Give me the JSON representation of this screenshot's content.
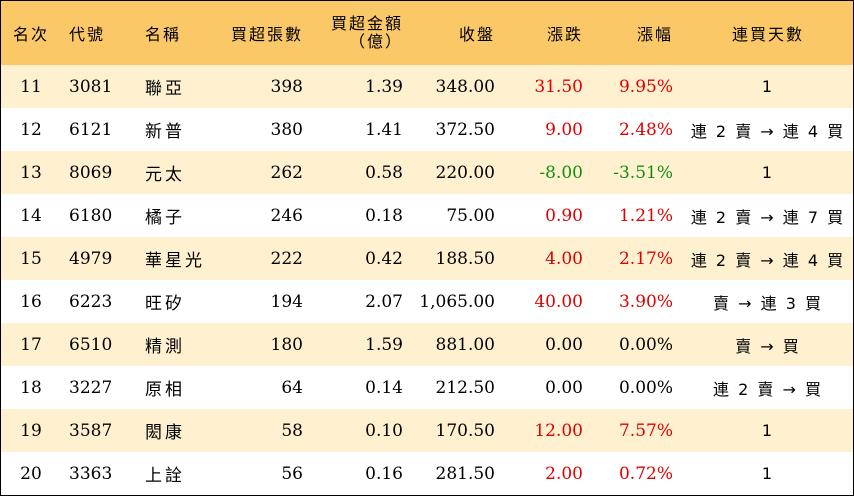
{
  "header": {
    "rank": "名次",
    "code": "代號",
    "name": "名稱",
    "net_buy_lots": "買超張數",
    "net_buy_amount_line1": "買超金額",
    "net_buy_amount_line2": "（億）",
    "close": "收盤",
    "change": "漲跌",
    "change_pct": "漲幅",
    "streak": "連買天數"
  },
  "colors": {
    "header_bg": "#fbc867",
    "stripe_bg": "#fff1d0",
    "up": "#e00000",
    "down": "#109010"
  },
  "rows": [
    {
      "rank": "11",
      "code": "3081",
      "name": "聯亞",
      "lots": "398",
      "amount": "1.39",
      "close": "348.00",
      "change": "31.50",
      "pct": "9.95%",
      "trend": "up",
      "streak": "1"
    },
    {
      "rank": "12",
      "code": "6121",
      "name": "新普",
      "lots": "380",
      "amount": "1.41",
      "close": "372.50",
      "change": "9.00",
      "pct": "2.48%",
      "trend": "up",
      "streak": "連 2 賣 → 連 4 買"
    },
    {
      "rank": "13",
      "code": "8069",
      "name": "元太",
      "lots": "262",
      "amount": "0.58",
      "close": "220.00",
      "change": "-8.00",
      "pct": "-3.51%",
      "trend": "down",
      "streak": "1"
    },
    {
      "rank": "14",
      "code": "6180",
      "name": "橘子",
      "lots": "246",
      "amount": "0.18",
      "close": "75.00",
      "change": "0.90",
      "pct": "1.21%",
      "trend": "up",
      "streak": "連 2 賣 → 連 7 買"
    },
    {
      "rank": "15",
      "code": "4979",
      "name": "華星光",
      "lots": "222",
      "amount": "0.42",
      "close": "188.50",
      "change": "4.00",
      "pct": "2.17%",
      "trend": "up",
      "streak": "連 2 賣 → 連 4 買"
    },
    {
      "rank": "16",
      "code": "6223",
      "name": "旺矽",
      "lots": "194",
      "amount": "2.07",
      "close": "1,065.00",
      "change": "40.00",
      "pct": "3.90%",
      "trend": "up",
      "streak": "賣 → 連 3 買"
    },
    {
      "rank": "17",
      "code": "6510",
      "name": "精測",
      "lots": "180",
      "amount": "1.59",
      "close": "881.00",
      "change": "0.00",
      "pct": "0.00%",
      "trend": "flat",
      "streak": "賣 → 買"
    },
    {
      "rank": "18",
      "code": "3227",
      "name": "原相",
      "lots": "64",
      "amount": "0.14",
      "close": "212.50",
      "change": "0.00",
      "pct": "0.00%",
      "trend": "flat",
      "streak": "連 2 賣 → 買"
    },
    {
      "rank": "19",
      "code": "3587",
      "name": "閎康",
      "lots": "58",
      "amount": "0.10",
      "close": "170.50",
      "change": "12.00",
      "pct": "7.57%",
      "trend": "up",
      "streak": "1"
    },
    {
      "rank": "20",
      "code": "3363",
      "name": "上詮",
      "lots": "56",
      "amount": "0.16",
      "close": "281.50",
      "change": "2.00",
      "pct": "0.72%",
      "trend": "up",
      "streak": "1"
    }
  ]
}
